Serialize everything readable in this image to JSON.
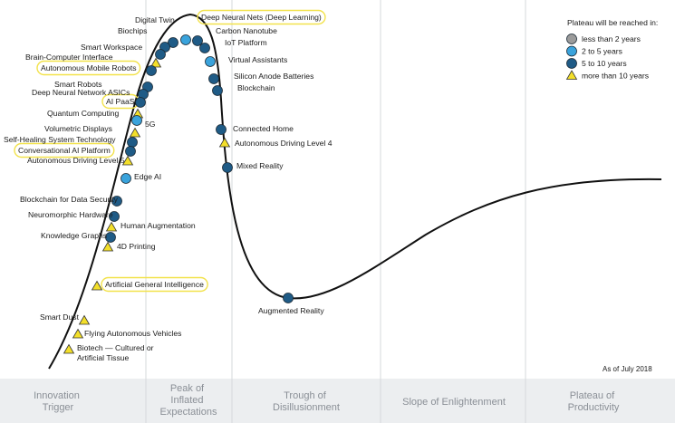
{
  "colors": {
    "curve": "#111111",
    "grid": "#d6d8db",
    "footer_bg": "#eceef0",
    "less_than_2": "#9b9b9b",
    "two_to_five": "#3aa3dc",
    "five_to_ten": "#1f5b86",
    "more_than_10": "#f3df2a",
    "highlight": "#f2e24a"
  },
  "legend": {
    "title": "Plateau will be reached in:",
    "items": [
      {
        "label": "less than 2 years",
        "kind": "less_than_2"
      },
      {
        "label": "2 to 5 years",
        "kind": "two_to_five"
      },
      {
        "label": "5 to 10 years",
        "kind": "five_to_ten"
      },
      {
        "label": "more than 10 years",
        "kind": "more_than_10"
      }
    ]
  },
  "as_of": "As of July 2018",
  "phases": [
    {
      "lines": [
        "Innovation",
        "Trigger"
      ]
    },
    {
      "lines": [
        "Peak of",
        "Inflated",
        "Expectations"
      ]
    },
    {
      "lines": [
        "Trough of",
        "Disillusionment"
      ]
    },
    {
      "lines": [
        "Slope of Enlightenment"
      ]
    },
    {
      "lines": [
        "Plateau of",
        "Productivity"
      ]
    }
  ],
  "technologies": [
    {
      "name": "Deep Neural Nets (Deep Learning)",
      "kind": "two_to_five",
      "highlighted": true
    },
    {
      "name": "Digital Twin",
      "kind": "five_to_ten",
      "highlighted": false
    },
    {
      "name": "Biochips",
      "kind": "five_to_ten",
      "highlighted": false
    },
    {
      "name": "Carbon Nanotube",
      "kind": "five_to_ten",
      "highlighted": false
    },
    {
      "name": "IoT Platform",
      "kind": "five_to_ten",
      "highlighted": false
    },
    {
      "name": "Smart Workspace",
      "kind": "five_to_ten",
      "highlighted": false
    },
    {
      "name": "Brain-Computer Interface",
      "kind": "more_than_10",
      "highlighted": false
    },
    {
      "name": "Autonomous Mobile Robots",
      "kind": "five_to_ten",
      "highlighted": true
    },
    {
      "name": "Virtual Assistants",
      "kind": "two_to_five",
      "highlighted": false
    },
    {
      "name": "Silicon Anode Batteries",
      "kind": "five_to_ten",
      "highlighted": false
    },
    {
      "name": "Blockchain",
      "kind": "five_to_ten",
      "highlighted": false
    },
    {
      "name": "Smart Robots",
      "kind": "five_to_ten",
      "highlighted": false
    },
    {
      "name": "Deep Neural Network ASICs",
      "kind": "five_to_ten",
      "highlighted": false
    },
    {
      "name": "AI PaaS",
      "kind": "five_to_ten",
      "highlighted": true
    },
    {
      "name": "Quantum Computing",
      "kind": "more_than_10",
      "highlighted": false
    },
    {
      "name": "5G",
      "kind": "two_to_five",
      "highlighted": false
    },
    {
      "name": "Volumetric Displays",
      "kind": "more_than_10",
      "highlighted": false
    },
    {
      "name": "Self-Healing System Technology",
      "kind": "five_to_ten",
      "highlighted": false
    },
    {
      "name": "Conversational AI Platform",
      "kind": "five_to_ten",
      "highlighted": true
    },
    {
      "name": "Autonomous Driving Level 5",
      "kind": "more_than_10",
      "highlighted": false
    },
    {
      "name": "Edge AI",
      "kind": "two_to_five",
      "highlighted": false
    },
    {
      "name": "Connected Home",
      "kind": "five_to_ten",
      "highlighted": false
    },
    {
      "name": "Autonomous Driving Level 4",
      "kind": "more_than_10",
      "highlighted": false
    },
    {
      "name": "Mixed Reality",
      "kind": "five_to_ten",
      "highlighted": false
    },
    {
      "name": "Blockchain for Data Security",
      "kind": "five_to_ten",
      "highlighted": false
    },
    {
      "name": "Neuromorphic Hardware",
      "kind": "five_to_ten",
      "highlighted": false
    },
    {
      "name": "Human Augmentation",
      "kind": "more_than_10",
      "highlighted": false
    },
    {
      "name": "Knowledge Graphs",
      "kind": "five_to_ten",
      "highlighted": false
    },
    {
      "name": "4D Printing",
      "kind": "more_than_10",
      "highlighted": false
    },
    {
      "name": "Artificial General Intelligence",
      "kind": "more_than_10",
      "highlighted": true
    },
    {
      "name": "Augmented Reality",
      "kind": "five_to_ten",
      "highlighted": false
    },
    {
      "name": "Smart Dust",
      "kind": "more_than_10",
      "highlighted": false
    },
    {
      "name": "Flying Autonomous Vehicles",
      "kind": "more_than_10",
      "highlighted": false
    },
    {
      "name": "Biotech — Cultured or Artificial Tissue",
      "kind": "more_than_10",
      "highlighted": false
    }
  ]
}
